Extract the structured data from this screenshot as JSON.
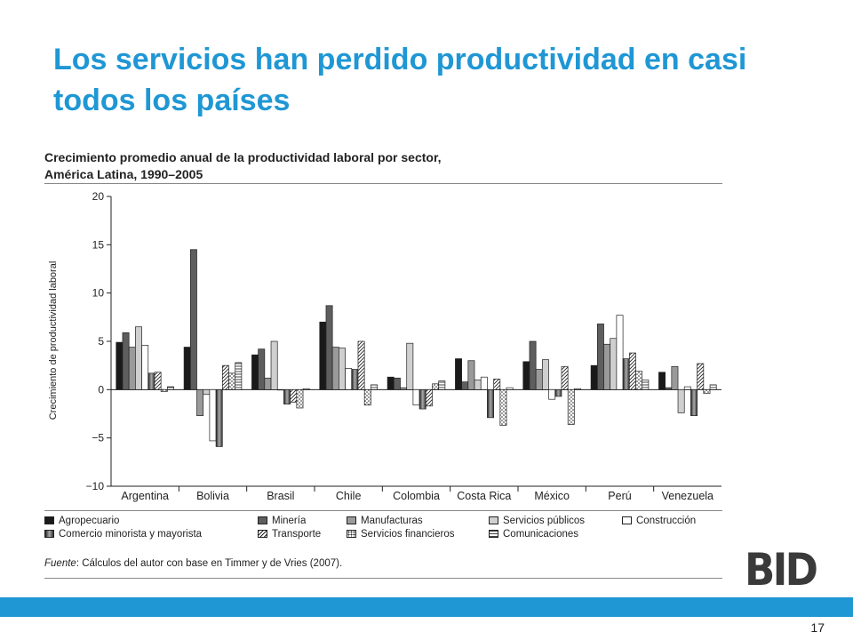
{
  "slide": {
    "title": "Los servicios han perdido productividad en casi todos los países",
    "page_number": "17",
    "logo_text": "BID"
  },
  "figure": {
    "title_line1": "Crecimiento promedio anual de la productividad laboral por sector,",
    "title_line2": "América Latina, 1990–2005",
    "source_label": "Fuente",
    "source_text": ": Cálculos del autor con base en Timmer y de Vries (2007)."
  },
  "chart_data": {
    "type": "bar",
    "ylabel": "Crecimiento de productividad laboral",
    "ylim": [
      -10,
      20
    ],
    "yticks": [
      "20",
      "15",
      "10",
      "5",
      "0",
      "−5",
      "−10"
    ],
    "ytick_values": [
      20,
      15,
      10,
      5,
      0,
      -5,
      -10
    ],
    "categories": [
      "Argentina",
      "Bolivia",
      "Brasil",
      "Chile",
      "Colombia",
      "Costa Rica",
      "México",
      "Perú",
      "Venezuela"
    ],
    "series": [
      {
        "name": "Agropecuario",
        "fill": "#1a1a1a",
        "pattern": "solid",
        "values": [
          4.9,
          4.4,
          3.6,
          7.0,
          1.3,
          3.2,
          2.9,
          2.5,
          1.8
        ]
      },
      {
        "name": "Minería",
        "fill": "#5e5e5e",
        "pattern": "solid",
        "values": [
          5.9,
          14.5,
          4.2,
          8.7,
          1.2,
          0.8,
          5.0,
          6.8,
          0.2
        ]
      },
      {
        "name": "Manufacturas",
        "fill": "#9a9a9a",
        "pattern": "solid",
        "values": [
          4.4,
          -2.7,
          1.2,
          4.4,
          0.2,
          3.0,
          2.1,
          4.7,
          2.4
        ]
      },
      {
        "name": "Servicios públicos",
        "fill": "#cfcfcf",
        "pattern": "solid",
        "values": [
          6.5,
          -0.5,
          5.0,
          4.3,
          4.8,
          1.0,
          3.1,
          5.3,
          -2.4
        ]
      },
      {
        "name": "Construcción",
        "fill": "#ffffff",
        "pattern": "solid",
        "values": [
          4.6,
          -5.3,
          0.0,
          2.2,
          -1.6,
          1.3,
          -1.0,
          7.7,
          0.3
        ]
      },
      {
        "name": "Comercio minorista y mayorista",
        "fill": "#6a6a6a",
        "pattern": "gradient",
        "values": [
          1.7,
          -5.9,
          -1.5,
          2.1,
          -2.0,
          -2.9,
          -0.7,
          3.2,
          -2.7
        ]
      },
      {
        "name": "Transporte",
        "fill": "#ffffff",
        "pattern": "diagonal",
        "values": [
          1.8,
          2.5,
          -1.3,
          5.0,
          -1.7,
          1.1,
          2.4,
          3.8,
          2.7
        ]
      },
      {
        "name": "Servicios financieros",
        "fill": "#ffffff",
        "pattern": "dots",
        "values": [
          -0.2,
          1.7,
          -1.9,
          -1.6,
          0.6,
          -3.7,
          -3.6,
          1.9,
          -0.4
        ]
      },
      {
        "name": "Comunicaciones",
        "fill": "#ffffff",
        "pattern": "horizontal",
        "values": [
          0.3,
          2.8,
          0.1,
          0.5,
          0.9,
          0.2,
          0.1,
          1.0,
          0.5
        ]
      }
    ],
    "grid": false,
    "legend_position": "bottom"
  }
}
